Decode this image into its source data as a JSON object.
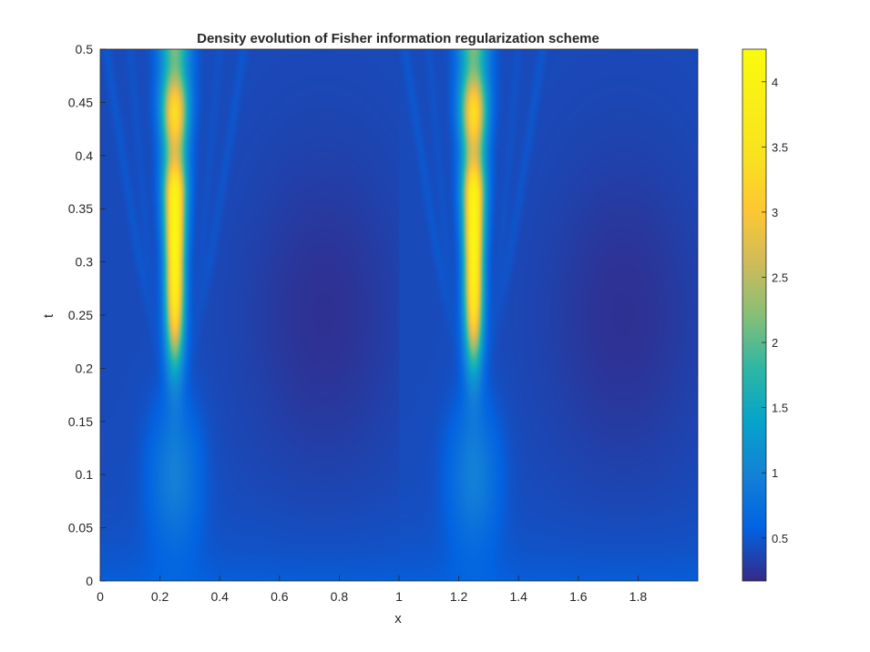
{
  "chart_data": {
    "type": "heatmap",
    "title": "Density evolution of Fisher information regularization scheme",
    "xlabel": "x",
    "ylabel": "t",
    "xlim": [
      0,
      2
    ],
    "ylim": [
      0,
      0.5
    ],
    "x_ticks": [
      "0",
      "0.2",
      "0.4",
      "0.6",
      "0.8",
      "1",
      "1.2",
      "1.4",
      "1.6",
      "1.8"
    ],
    "y_ticks": [
      "0",
      "0.05",
      "0.1",
      "0.15",
      "0.2",
      "0.25",
      "0.3",
      "0.35",
      "0.4",
      "0.45",
      "0.5"
    ],
    "colorbar": {
      "colormap": "parula",
      "range": [
        0.17,
        4.25
      ],
      "ticks": [
        "0.5",
        "1",
        "1.5",
        "2",
        "2.5",
        "3",
        "3.5",
        "4"
      ]
    },
    "peaks": [
      {
        "x": 0.25,
        "t": 0.3,
        "value": 4.2
      },
      {
        "x": 1.25,
        "t": 0.3,
        "value": 4.2
      }
    ],
    "background_level": 0.4,
    "initial_level_t0": 0.55
  }
}
